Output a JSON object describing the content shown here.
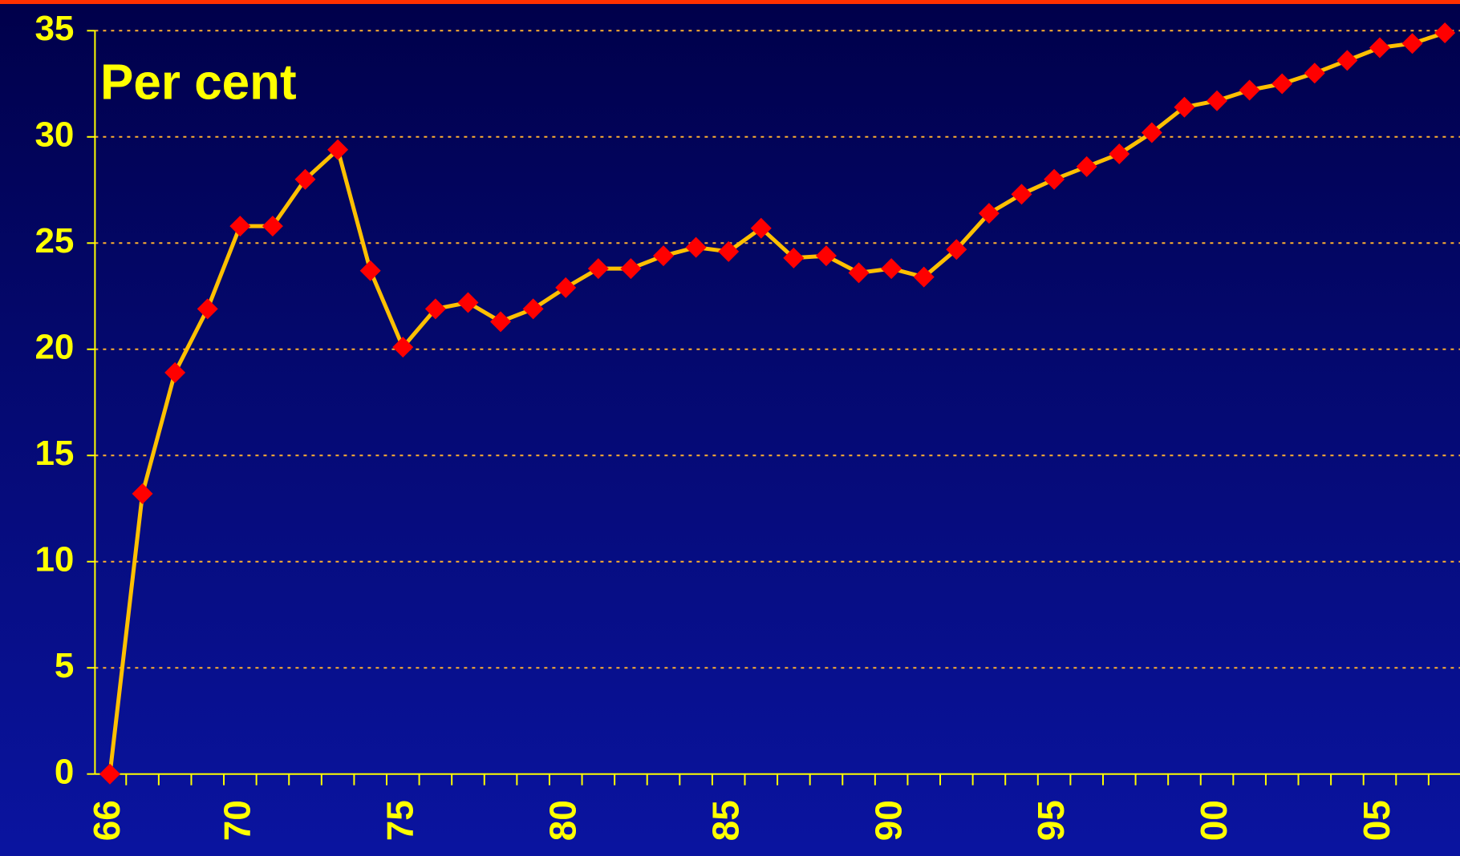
{
  "chart_data": {
    "type": "line",
    "y_label": "Per cent",
    "categories": [
      "66",
      null,
      null,
      null,
      "70",
      null,
      null,
      null,
      null,
      "75",
      null,
      null,
      null,
      null,
      "80",
      null,
      null,
      null,
      null,
      "85",
      null,
      null,
      null,
      null,
      "90",
      null,
      null,
      null,
      null,
      "95",
      null,
      null,
      null,
      null,
      "00",
      null,
      null,
      null,
      null,
      "05",
      null,
      null
    ],
    "series": [
      {
        "name": null,
        "color": "#ffc000",
        "marker_color": "#ff0000",
        "values": [
          0,
          13.2,
          18.9,
          21.9,
          25.8,
          25.8,
          28.0,
          29.4,
          23.7,
          20.1,
          21.9,
          22.2,
          21.3,
          21.9,
          22.9,
          23.8,
          23.8,
          24.4,
          24.8,
          24.6,
          25.7,
          24.3,
          24.4,
          23.6,
          23.8,
          23.4,
          24.7,
          26.4,
          27.3,
          28.0,
          28.6,
          29.2,
          30.2,
          31.4,
          31.7,
          32.2,
          32.5,
          33.0,
          33.6,
          34.2,
          34.4,
          34.9
        ]
      }
    ],
    "ylim": [
      0,
      35
    ],
    "yticks": [
      0,
      5,
      10,
      15,
      20,
      25,
      30,
      35
    ],
    "grid": true
  }
}
